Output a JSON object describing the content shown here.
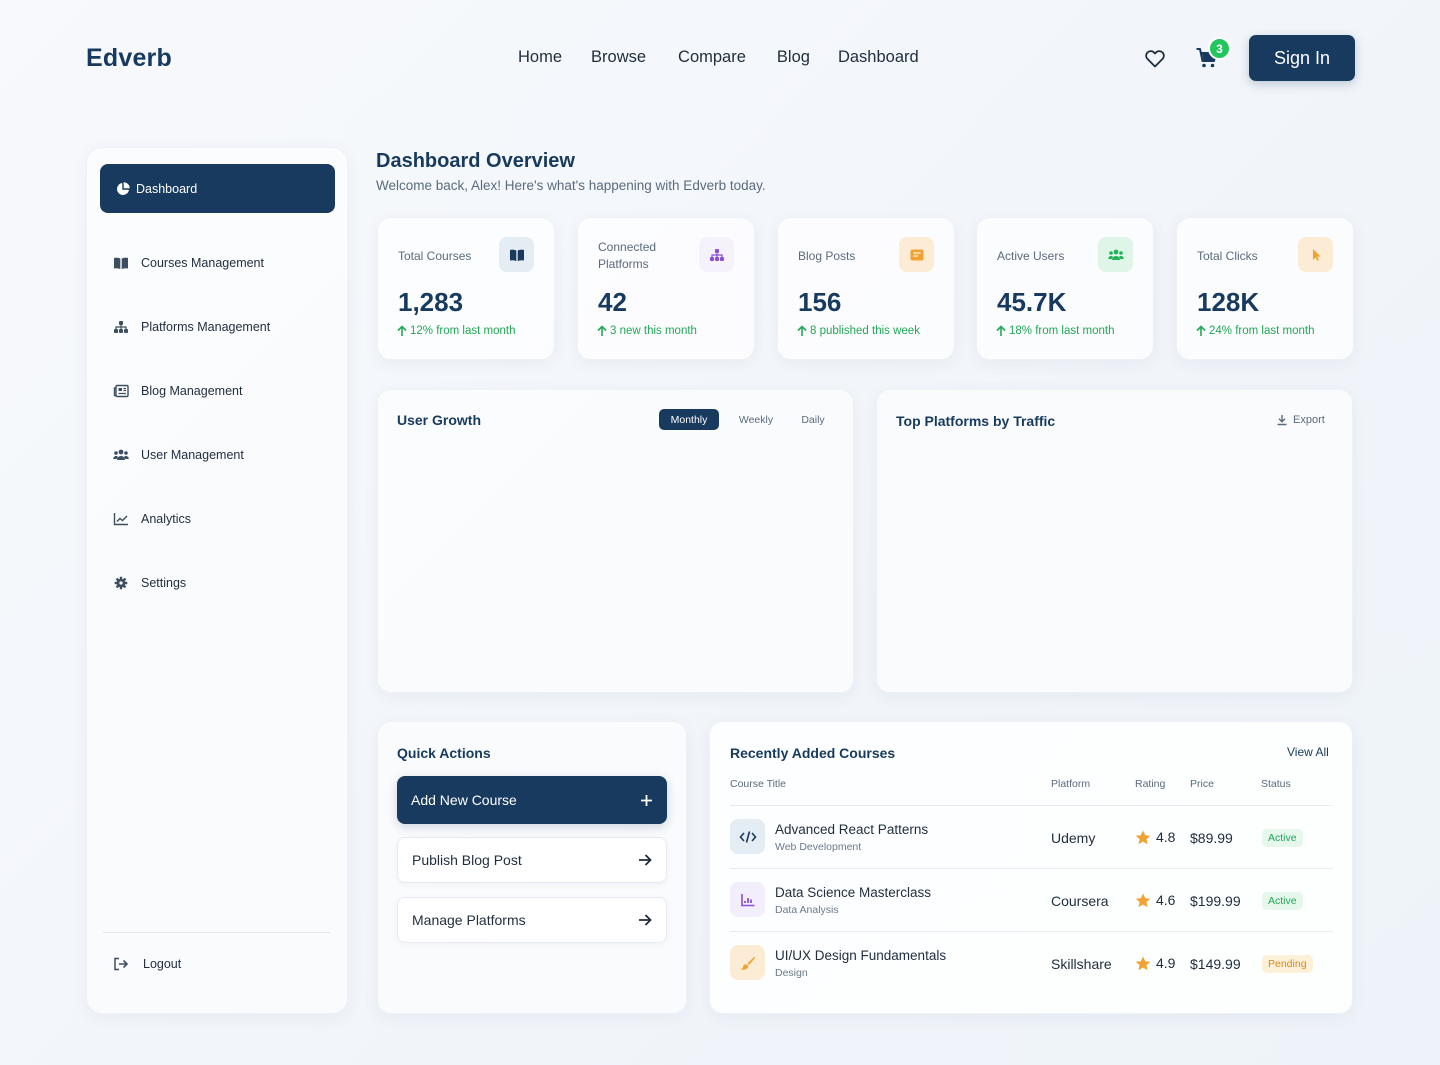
{
  "header": {
    "logo": "Edverb",
    "nav": [
      "Home",
      "Browse",
      "Compare",
      "Blog",
      "Dashboard"
    ],
    "cart_count": "3",
    "signin_label": "Sign In"
  },
  "sidebar": {
    "active": "Dashboard",
    "items": [
      "Courses Management",
      "Platforms Management",
      "Blog Management",
      "User Management",
      "Analytics",
      "Settings"
    ],
    "logout": "Logout"
  },
  "main": {
    "title": "Dashboard Overview",
    "subtitle": "Welcome back, Alex! Here's what's happening with Edverb today."
  },
  "stats": [
    {
      "label": "Total Courses",
      "value": "1,283",
      "delta": "12% from last month",
      "icon": "book-icon",
      "bg": "#e3edf3",
      "fg": "#173a5e"
    },
    {
      "label": "Connected Platforms",
      "value": "42",
      "delta": "3 new this month",
      "icon": "sitemap-icon",
      "bg": "#f1ecfa",
      "fg": "#8a4ed8"
    },
    {
      "label": "Blog Posts",
      "value": "156",
      "delta": "8 published this week",
      "icon": "newspaper-icon",
      "bg": "#fdecd5",
      "fg": "#f2a230"
    },
    {
      "label": "Active Users",
      "value": "45.7K",
      "delta": "18% from last month",
      "icon": "users-icon",
      "bg": "#dff5e7",
      "fg": "#22b45a"
    },
    {
      "label": "Total Clicks",
      "value": "128K",
      "delta": "24% from last month",
      "icon": "cursor-icon",
      "bg": "#fdecd5",
      "fg": "#f2a230"
    }
  ],
  "user_growth": {
    "title": "User Growth",
    "tabs": [
      "Monthly",
      "Weekly",
      "Daily"
    ],
    "active_tab": "Monthly"
  },
  "top_platforms": {
    "title": "Top Platforms by Traffic",
    "export_label": "Export"
  },
  "quick_actions": {
    "title": "Quick Actions",
    "buttons": [
      "Add New Course",
      "Publish Blog Post",
      "Manage Platforms"
    ]
  },
  "recent": {
    "title": "Recently Added Courses",
    "view_all": "View All",
    "columns": [
      "Course Title",
      "Platform",
      "Rating",
      "Price",
      "Status"
    ],
    "rows": [
      {
        "title": "Advanced React Patterns",
        "category": "Web Development",
        "platform": "Udemy",
        "rating": "4.8",
        "price": "$89.99",
        "status": "Active",
        "icon": "code-icon"
      },
      {
        "title": "Data Science Masterclass",
        "category": "Data Analysis",
        "platform": "Coursera",
        "rating": "4.6",
        "price": "$199.99",
        "status": "Active",
        "icon": "chart-icon"
      },
      {
        "title": "UI/UX Design Fundamentals",
        "category": "Design",
        "platform": "Skillshare",
        "rating": "4.9",
        "price": "$149.99",
        "status": "Pending",
        "icon": "brush-icon"
      }
    ]
  }
}
